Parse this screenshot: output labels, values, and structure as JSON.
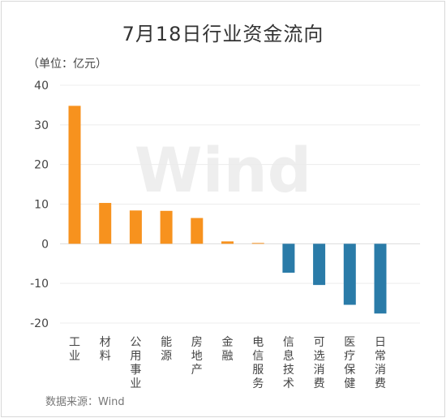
{
  "chart_data": {
    "type": "bar",
    "title": "7月18日行业资金流向",
    "unit_label": "（单位：亿元）",
    "source": "数据来源：Wind",
    "watermark": "Wind",
    "ylim": [
      -20,
      40
    ],
    "yticks": [
      40,
      30,
      20,
      10,
      0,
      -10,
      -20
    ],
    "categories": [
      "工业",
      "材料",
      "公用事业",
      "能源",
      "房地产",
      "金融",
      "电信服务",
      "信息技术",
      "可选消费",
      "医疗保健",
      "日常消费"
    ],
    "values": [
      34.8,
      10.3,
      8.4,
      8.3,
      6.5,
      0.6,
      0.2,
      -7.3,
      -10.4,
      -15.4,
      -17.6
    ],
    "colors": {
      "positive": "#f7921e",
      "negative": "#2a7ba8"
    },
    "grid": true
  }
}
